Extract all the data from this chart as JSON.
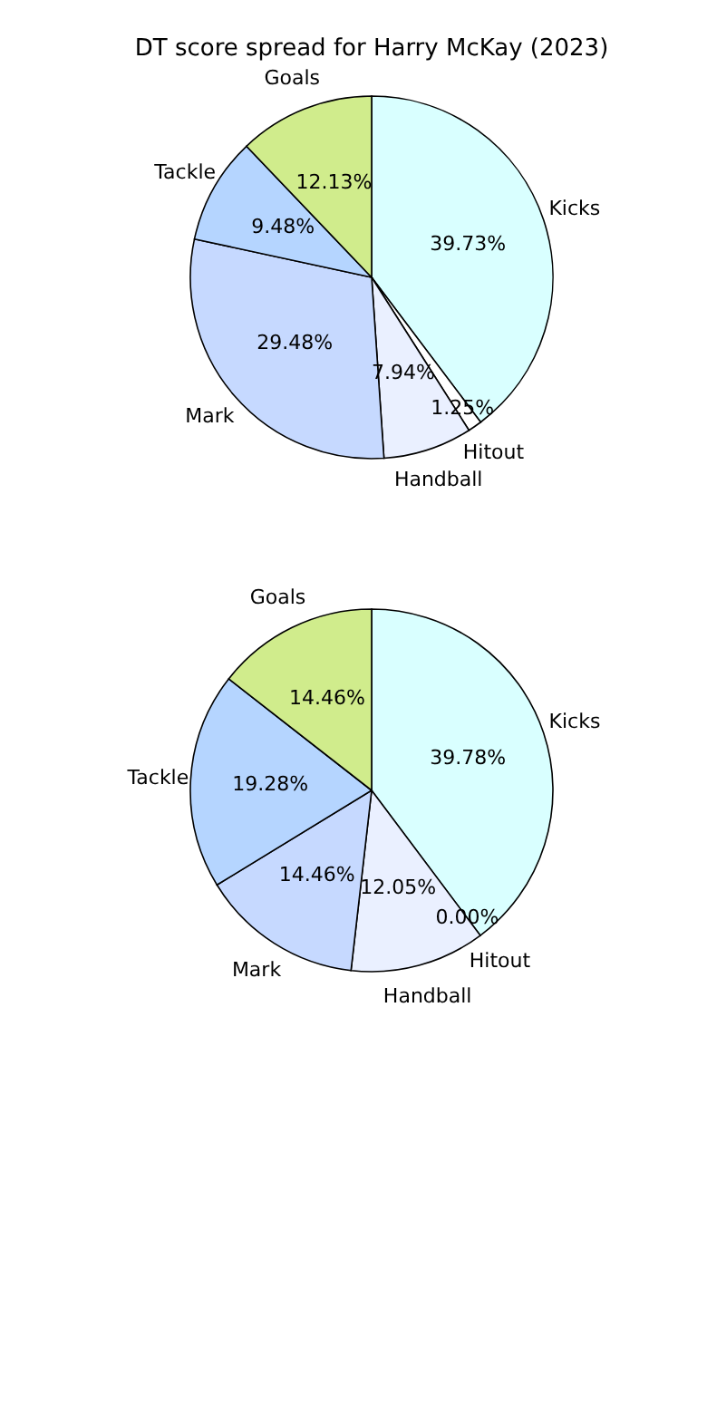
{
  "chart_data": [
    {
      "type": "pie",
      "title": "DT score spread for Harry McKay (2023)",
      "categories": [
        "Kicks",
        "Hitout",
        "Handball",
        "Mark",
        "Tackle",
        "Goals"
      ],
      "values": [
        39.73,
        1.25,
        7.94,
        29.48,
        9.48,
        12.13
      ],
      "colors": [
        "#d9ffff",
        "#ffffff",
        "#eaf0ff",
        "#c6d9ff",
        "#b5d5ff",
        "#d0ec8c"
      ],
      "value_labels": [
        "39.73%",
        "1.25%",
        "7.94%",
        "29.48%",
        "9.48%",
        "12.13%"
      ]
    },
    {
      "type": "pie",
      "categories": [
        "Kicks",
        "Hitout",
        "Handball",
        "Mark",
        "Tackle",
        "Goals"
      ],
      "values": [
        39.78,
        0.0,
        12.05,
        14.46,
        19.28,
        14.46
      ],
      "colors": [
        "#d9ffff",
        "#ffffff",
        "#eaf0ff",
        "#c6d9ff",
        "#b5d5ff",
        "#d0ec8c"
      ],
      "value_labels": [
        "39.78%",
        "0.00%",
        "12.05%",
        "14.46%",
        "19.28%",
        "14.46%"
      ]
    }
  ]
}
